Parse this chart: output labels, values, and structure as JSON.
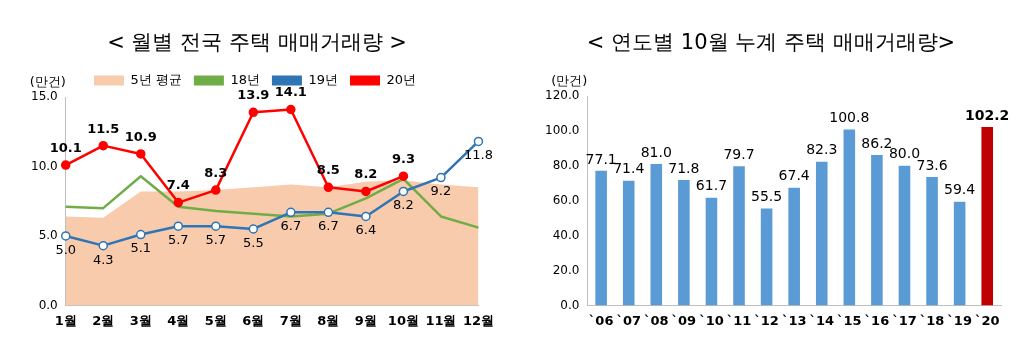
{
  "chart_data": [
    {
      "type": "line",
      "title": "< 월별 전국 주택 매매거래량 >",
      "ylabel": "(만건)",
      "categories": [
        "1월",
        "2월",
        "3월",
        "4월",
        "5월",
        "6월",
        "7월",
        "8월",
        "9월",
        "10월",
        "11월",
        "12월"
      ],
      "ylim": [
        0,
        15
      ],
      "yticks": [
        {
          "value": 0,
          "label": "0.0"
        },
        {
          "value": 5,
          "label": "5.0"
        },
        {
          "value": 10,
          "label": "10.0"
        },
        {
          "value": 15,
          "label": "15.0"
        }
      ],
      "grid": false,
      "legend": "top",
      "series": [
        {
          "name": "5년 평균",
          "type": "area",
          "color": "#f8cbad",
          "marker": "none",
          "values": [
            6.4,
            6.3,
            8.2,
            8.2,
            8.3,
            8.5,
            8.7,
            8.5,
            8.9,
            9.0,
            8.7,
            8.5
          ]
        },
        {
          "name": "18년",
          "type": "line",
          "color": "#70ad47",
          "marker": "none",
          "values": [
            7.1,
            7.0,
            9.3,
            7.1,
            6.8,
            6.6,
            6.4,
            6.6,
            7.7,
            9.1,
            6.4,
            5.6
          ]
        },
        {
          "name": "19년",
          "type": "line",
          "color": "#2e75b6",
          "marker": "circle",
          "values": [
            5.0,
            4.3,
            5.1,
            5.7,
            5.7,
            5.5,
            6.7,
            6.7,
            6.4,
            8.2,
            9.2,
            11.8
          ],
          "value_labels": [
            "5.0",
            "4.3",
            "5.1",
            "5.7",
            "5.7",
            "5.5",
            "6.7",
            "6.7",
            "6.4",
            "8.2",
            "9.2",
            "11.8"
          ]
        },
        {
          "name": "20년",
          "type": "line",
          "color": "#ff0000",
          "marker": "circle",
          "values": [
            10.1,
            11.5,
            10.9,
            7.4,
            8.3,
            13.9,
            14.1,
            8.5,
            8.2,
            9.3,
            null,
            null
          ],
          "value_labels": [
            "10.1",
            "11.5",
            "10.9",
            "7.4",
            "8.3",
            "13.9",
            "14.1",
            "8.5",
            "8.2",
            "9.3",
            null,
            null
          ]
        }
      ]
    },
    {
      "type": "bar",
      "title": "< 연도별 10월 누계 주택 매매거래량>",
      "ylabel": "(만건)",
      "categories": [
        "`06",
        "`07",
        "`08",
        "`09",
        "`10",
        "`11",
        "`12",
        "`13",
        "`14",
        "`15",
        "`16",
        "`17",
        "`18",
        "`19",
        "`20"
      ],
      "values": [
        77.1,
        71.4,
        81.0,
        71.8,
        61.7,
        79.7,
        55.5,
        67.4,
        82.3,
        100.8,
        86.2,
        80.0,
        73.6,
        59.4,
        102.2
      ],
      "value_labels": [
        "77.1",
        "71.4",
        "81.0",
        "71.8",
        "61.7",
        "79.7",
        "55.5",
        "67.4",
        "82.3",
        "100.8",
        "86.2",
        "80.0",
        "73.6",
        "59.4",
        "102.2"
      ],
      "colors": [
        "#5b9bd5",
        "#5b9bd5",
        "#5b9bd5",
        "#5b9bd5",
        "#5b9bd5",
        "#5b9bd5",
        "#5b9bd5",
        "#5b9bd5",
        "#5b9bd5",
        "#5b9bd5",
        "#5b9bd5",
        "#5b9bd5",
        "#5b9bd5",
        "#5b9bd5",
        "#c00000"
      ],
      "ylim": [
        0,
        120
      ],
      "yticks": [
        {
          "value": 0,
          "label": "0.0"
        },
        {
          "value": 20,
          "label": "20.0"
        },
        {
          "value": 40,
          "label": "40.0"
        },
        {
          "value": 60,
          "label": "60.0"
        },
        {
          "value": 80,
          "label": "80.0"
        },
        {
          "value": 100,
          "label": "100.0"
        },
        {
          "value": 120,
          "label": "120.0"
        }
      ],
      "grid": false,
      "legend": false
    }
  ]
}
